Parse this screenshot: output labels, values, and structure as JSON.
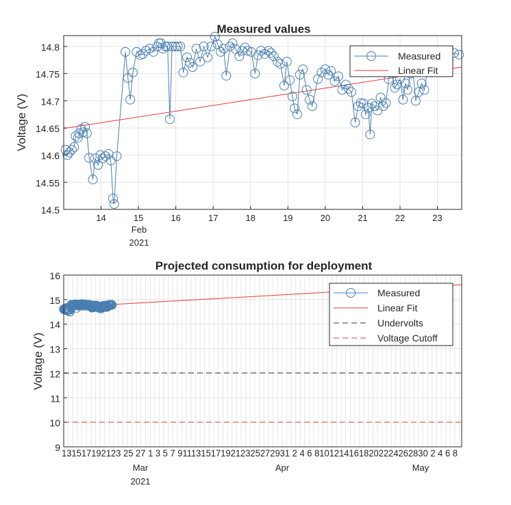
{
  "chart_data": [
    {
      "type": "line",
      "title": "Measured values",
      "ylabel": "Voltage (V)",
      "xlabel": "",
      "xlim": [
        13.0,
        23.65
      ],
      "ylim": [
        14.5,
        14.82
      ],
      "xticks": [
        "14",
        "15",
        "16",
        "17",
        "18",
        "19",
        "20",
        "21",
        "22",
        "23"
      ],
      "yticks": [
        "14.5",
        "14.55",
        "14.6",
        "14.65",
        "14.7",
        "14.75",
        "14.8"
      ],
      "x_secondary": [
        "Feb",
        "2021"
      ],
      "grid": true,
      "legend_position": "top-right",
      "series": [
        {
          "name": "Measured",
          "color": "#4a7fb0",
          "marker": "circle",
          "points": [
            [
              13.05,
              14.61
            ],
            [
              13.1,
              14.6
            ],
            [
              13.15,
              14.605
            ],
            [
              13.22,
              14.61
            ],
            [
              13.28,
              14.615
            ],
            [
              13.32,
              14.635
            ],
            [
              13.38,
              14.632
            ],
            [
              13.42,
              14.64
            ],
            [
              13.47,
              14.648
            ],
            [
              13.52,
              14.642
            ],
            [
              13.57,
              14.652
            ],
            [
              13.62,
              14.64
            ],
            [
              13.68,
              14.595
            ],
            [
              13.78,
              14.555
            ],
            [
              13.84,
              14.594
            ],
            [
              13.92,
              14.582
            ],
            [
              13.98,
              14.6
            ],
            [
              14.04,
              14.594
            ],
            [
              14.12,
              14.598
            ],
            [
              14.2,
              14.602
            ],
            [
              14.26,
              14.59
            ],
            [
              14.32,
              14.52
            ],
            [
              14.35,
              14.51
            ],
            [
              14.42,
              14.598
            ],
            [
              14.65,
              14.79
            ],
            [
              14.72,
              14.742
            ],
            [
              14.78,
              14.702
            ],
            [
              14.85,
              14.752
            ],
            [
              14.95,
              14.79
            ],
            [
              15.05,
              14.784
            ],
            [
              15.12,
              14.786
            ],
            [
              15.2,
              14.792
            ],
            [
              15.3,
              14.796
            ],
            [
              15.4,
              14.79
            ],
            [
              15.5,
              14.8
            ],
            [
              15.55,
              14.806
            ],
            [
              15.6,
              14.806
            ],
            [
              15.65,
              14.796
            ],
            [
              15.72,
              14.8
            ],
            [
              15.78,
              14.8
            ],
            [
              15.84,
              14.666
            ],
            [
              15.9,
              14.8
            ],
            [
              15.98,
              14.8
            ],
            [
              16.05,
              14.8
            ],
            [
              16.12,
              14.8
            ],
            [
              16.2,
              14.752
            ],
            [
              16.3,
              14.78
            ],
            [
              16.38,
              14.77
            ],
            [
              16.45,
              14.762
            ],
            [
              16.55,
              14.796
            ],
            [
              16.65,
              14.772
            ],
            [
              16.75,
              14.8
            ],
            [
              16.85,
              14.78
            ],
            [
              16.95,
              14.8
            ],
            [
              17.05,
              14.818
            ],
            [
              17.12,
              14.804
            ],
            [
              17.2,
              14.79
            ],
            [
              17.28,
              14.796
            ],
            [
              17.35,
              14.746
            ],
            [
              17.45,
              14.8
            ],
            [
              17.52,
              14.806
            ],
            [
              17.6,
              14.795
            ],
            [
              17.7,
              14.782
            ],
            [
              17.78,
              14.792
            ],
            [
              17.85,
              14.798
            ],
            [
              17.92,
              14.792
            ],
            [
              18.02,
              14.79
            ],
            [
              18.12,
              14.75
            ],
            [
              18.2,
              14.784
            ],
            [
              18.28,
              14.792
            ],
            [
              18.38,
              14.786
            ],
            [
              18.48,
              14.792
            ],
            [
              18.55,
              14.788
            ],
            [
              18.62,
              14.782
            ],
            [
              18.72,
              14.772
            ],
            [
              18.8,
              14.768
            ],
            [
              18.9,
              14.728
            ],
            [
              18.97,
              14.772
            ],
            [
              19.05,
              14.738
            ],
            [
              19.12,
              14.708
            ],
            [
              19.18,
              14.686
            ],
            [
              19.25,
              14.675
            ],
            [
              19.32,
              14.748
            ],
            [
              19.4,
              14.758
            ],
            [
              19.5,
              14.72
            ],
            [
              19.58,
              14.702
            ],
            [
              19.65,
              14.69
            ],
            [
              19.8,
              14.74
            ],
            [
              19.9,
              14.752
            ],
            [
              20.0,
              14.758
            ],
            [
              20.08,
              14.748
            ],
            [
              20.15,
              14.755
            ],
            [
              20.25,
              14.736
            ],
            [
              20.35,
              14.745
            ],
            [
              20.45,
              14.72
            ],
            [
              20.55,
              14.73
            ],
            [
              20.62,
              14.722
            ],
            [
              20.7,
              14.716
            ],
            [
              20.8,
              14.66
            ],
            [
              20.88,
              14.69
            ],
            [
              20.95,
              14.696
            ],
            [
              21.02,
              14.695
            ],
            [
              21.08,
              14.675
            ],
            [
              21.15,
              14.687
            ],
            [
              21.2,
              14.638
            ],
            [
              21.25,
              14.695
            ],
            [
              21.32,
              14.69
            ],
            [
              21.4,
              14.682
            ],
            [
              21.48,
              14.706
            ],
            [
              21.55,
              14.69
            ],
            [
              21.62,
              14.696
            ],
            [
              21.7,
              14.74
            ],
            [
              21.78,
              14.75
            ],
            [
              21.86,
              14.724
            ],
            [
              21.92,
              14.73
            ],
            [
              22.0,
              14.74
            ],
            [
              22.08,
              14.702
            ],
            [
              22.15,
              14.732
            ],
            [
              22.2,
              14.72
            ],
            [
              22.28,
              14.75
            ],
            [
              22.35,
              14.752
            ],
            [
              22.42,
              14.7
            ],
            [
              22.5,
              14.716
            ],
            [
              22.58,
              14.732
            ],
            [
              22.65,
              14.72
            ],
            [
              22.75,
              14.762
            ],
            [
              22.85,
              14.752
            ],
            [
              22.92,
              14.78
            ],
            [
              23.05,
              14.77
            ],
            [
              23.15,
              14.782
            ],
            [
              23.3,
              14.775
            ],
            [
              23.45,
              14.788
            ],
            [
              23.58,
              14.785
            ]
          ]
        },
        {
          "name": "Linear Fit",
          "color": "#e83838",
          "points": [
            [
              13.0,
              14.649
            ],
            [
              23.65,
              14.762
            ]
          ]
        }
      ]
    },
    {
      "type": "line",
      "title": "Projected consumption for deployment",
      "ylabel": "Voltage (V)",
      "xlabel": "",
      "xlim": [
        13.0,
        100.5
      ],
      "ylim": [
        9,
        16
      ],
      "yticks": [
        "9",
        "10",
        "11",
        "12",
        "13",
        "14",
        "15",
        "16"
      ],
      "xticks": [
        "13",
        "15",
        "17",
        "19",
        "21",
        "23",
        "25",
        "27",
        "1",
        "3",
        "5",
        "7",
        "9",
        "11",
        "13",
        "15",
        "17",
        "19",
        "21",
        "23",
        "25",
        "27",
        "29",
        "31",
        "2",
        "4",
        "6",
        "8",
        "10",
        "12",
        "14",
        "16",
        "18",
        "20",
        "22",
        "24",
        "26",
        "28",
        "30",
        "2",
        "4",
        "6",
        "8"
      ],
      "xtick_display": "131517192123 25 27 1 3 5 7 91113151719212325272931 2 4 6 81012141618202224262830 2 4 6 8",
      "month_labels": [
        "Mar",
        "Apr",
        "May"
      ],
      "year_label": "2021",
      "grid": true,
      "legend_position": "top-right",
      "series": [
        {
          "name": "Measured",
          "color": "#4a7fb0",
          "marker": "circle",
          "x_range": [
            13.05,
            23.6
          ],
          "y_range": [
            14.51,
            14.82
          ]
        },
        {
          "name": "Linear Fit",
          "color": "#e83838",
          "points": [
            [
              13.0,
              14.65
            ],
            [
              100.5,
              15.58
            ]
          ]
        },
        {
          "name": "Undervolts",
          "color": "#333333",
          "dash": true,
          "value": 12
        },
        {
          "name": "Voltage Cutoff",
          "color": "#e83838",
          "dash": true,
          "value": 10
        }
      ]
    }
  ]
}
